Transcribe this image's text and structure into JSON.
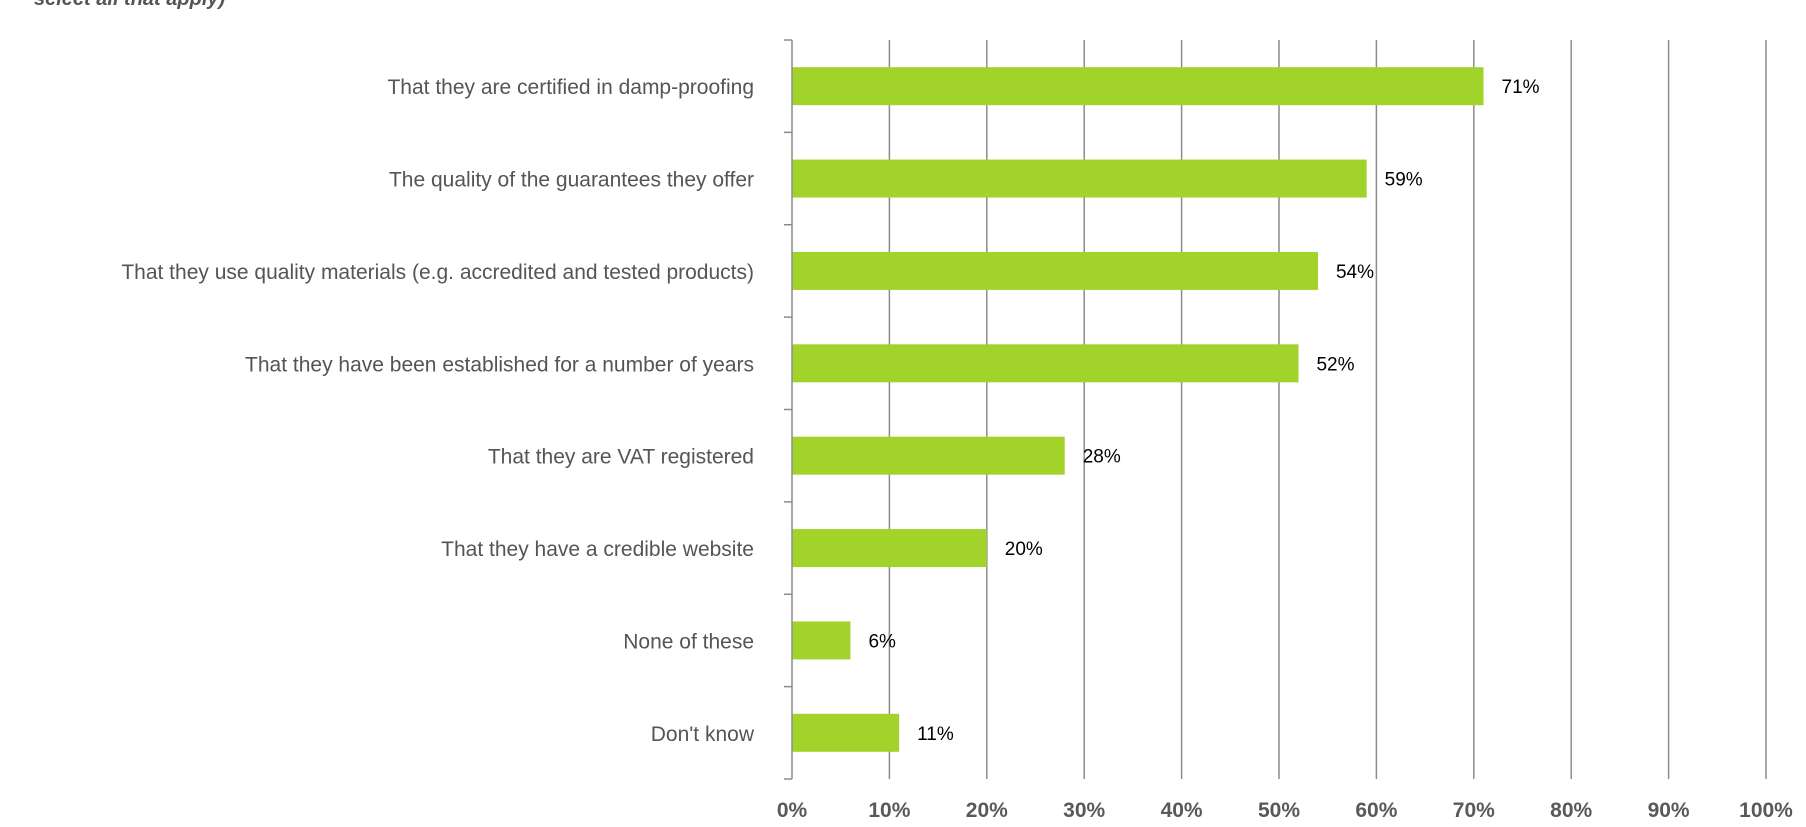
{
  "chart_data": {
    "type": "bar",
    "orientation": "horizontal",
    "subtitle": "select all that apply)",
    "categories": [
      "That they are certified in damp-proofing",
      "The quality of the guarantees they offer",
      "That they use quality materials (e.g. accredited and tested products)",
      "That they have been established for a number of years",
      "That they are VAT registered",
      "That they have a credible website",
      "None of these",
      "Don't know"
    ],
    "values": [
      71,
      59,
      54,
      52,
      28,
      20,
      6,
      11
    ],
    "data_labels": [
      "71%",
      "59%",
      "54%",
      "52%",
      "28%",
      "20%",
      "6%",
      "11%"
    ],
    "xlim": [
      0,
      100
    ],
    "x_ticks": [
      "0%",
      "10%",
      "20%",
      "30%",
      "40%",
      "50%",
      "60%",
      "70%",
      "80%",
      "90%",
      "100%"
    ],
    "grid": "vertical",
    "legend": "none",
    "colors": {
      "bar": "#a2d32b",
      "grid": "#8c8c8c",
      "axis": "#8c8c8c",
      "category_text": "#555555",
      "tick_text": "#595959",
      "label_text": "#000000"
    }
  }
}
